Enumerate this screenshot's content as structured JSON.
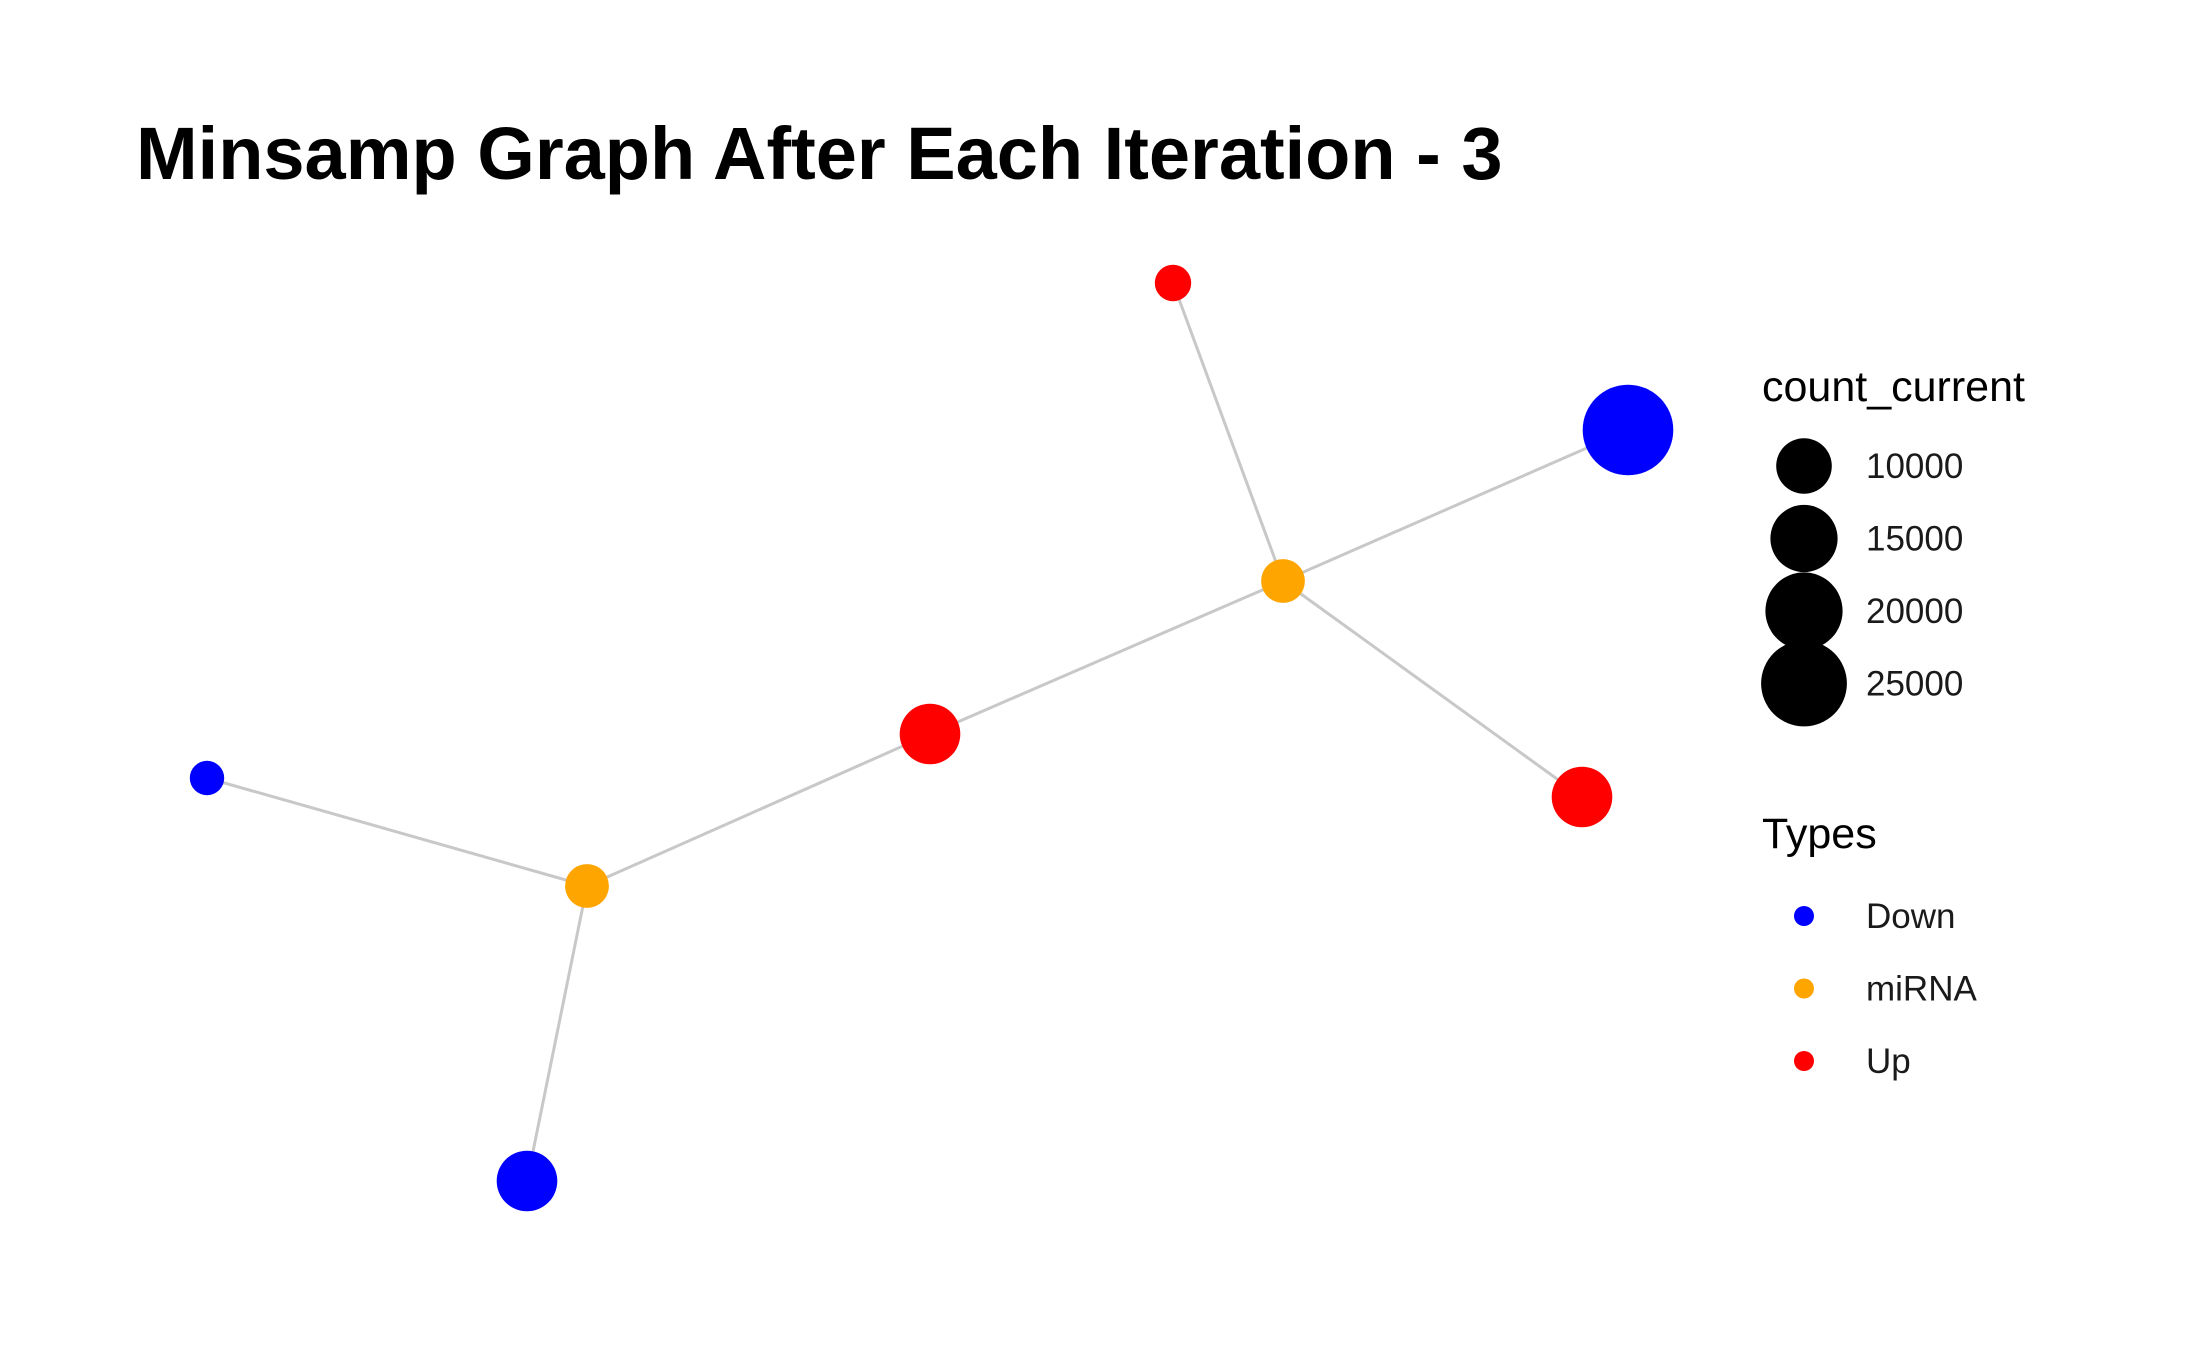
{
  "title": "Minsamp Graph After Each Iteration - 3",
  "graph": {
    "edge_color": "#c8c8c8",
    "nodes": [
      {
        "id": "n1",
        "type": "Up",
        "count_current": 4000
      },
      {
        "id": "n2",
        "type": "Down",
        "count_current": 28000
      },
      {
        "id": "n3",
        "type": "miRNA",
        "count_current": 6000
      },
      {
        "id": "n4",
        "type": "Up",
        "count_current": 12000
      },
      {
        "id": "n5",
        "type": "Up",
        "count_current": 12000
      },
      {
        "id": "n6",
        "type": "Down",
        "count_current": 3500
      },
      {
        "id": "n7",
        "type": "miRNA",
        "count_current": 6000
      },
      {
        "id": "n8",
        "type": "Down",
        "count_current": 12000
      }
    ],
    "edges": [
      {
        "source": "n1",
        "target": "n3"
      },
      {
        "source": "n2",
        "target": "n3"
      },
      {
        "source": "n3",
        "target": "n4"
      },
      {
        "source": "n3",
        "target": "n5"
      },
      {
        "source": "n5",
        "target": "n7"
      },
      {
        "source": "n6",
        "target": "n7"
      },
      {
        "source": "n7",
        "target": "n8"
      }
    ]
  },
  "legend": {
    "size_title": "count_current",
    "size_entries": [
      {
        "label": "10000",
        "value": 10000
      },
      {
        "label": "15000",
        "value": 15000
      },
      {
        "label": "20000",
        "value": 20000
      },
      {
        "label": "25000",
        "value": 25000
      }
    ],
    "type_title": "Types",
    "type_entries": [
      {
        "label": "Down",
        "color": "#0000ff"
      },
      {
        "label": "miRNA",
        "color": "#ffa500"
      },
      {
        "label": "Up",
        "color": "#ff0000"
      }
    ]
  }
}
